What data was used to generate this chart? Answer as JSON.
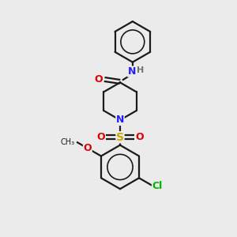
{
  "background_color": "#ebebeb",
  "bond_color": "#1a1a1a",
  "atom_colors": {
    "N": "#2020ff",
    "O": "#e00000",
    "S": "#c8a800",
    "Cl": "#00b000",
    "H": "#707070",
    "C": "#1a1a1a"
  },
  "figsize": [
    3.0,
    3.0
  ],
  "dpi": 100,
  "lw": 1.6,
  "font_size": 9
}
